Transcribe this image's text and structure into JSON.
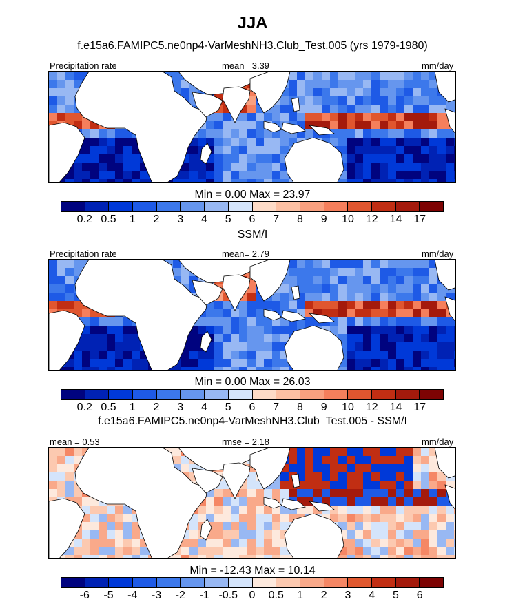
{
  "title": "JJA",
  "panels": [
    {
      "subtitle": "f.e15a6.FAMIPC5.ne0np4-VarMeshNH3.Club_Test.005 (yrs 1979-1980)",
      "left_label": "Precipitation rate",
      "center_label": "mean=   3.39",
      "right_label": "mm/day",
      "minmax": "Min =   0.00 Max =  23.97",
      "field": "model",
      "palette": "precip",
      "levels": [
        "0.2",
        "0.5",
        "1",
        "2",
        "3",
        "4",
        "5",
        "6",
        "7",
        "8",
        "9",
        "10",
        "12",
        "14",
        "17"
      ]
    },
    {
      "subtitle": "SSM/I",
      "left_label": "Precipitation rate",
      "center_label": "mean=   2.79",
      "right_label": "mm/day",
      "minmax": "Min =   0.00 Max =  26.03",
      "field": "obs",
      "palette": "precip",
      "levels": [
        "0.2",
        "0.5",
        "1",
        "2",
        "3",
        "4",
        "5",
        "6",
        "7",
        "8",
        "9",
        "10",
        "12",
        "14",
        "17"
      ]
    },
    {
      "subtitle": "f.e15a6.FAMIPC5.ne0np4-VarMeshNH3.Club_Test.005 - SSM/I",
      "left_label": "mean =   0.53",
      "center_label": "rmse =   2.18",
      "right_label": "mm/day",
      "minmax": "Min = -12.43 Max =  10.14",
      "field": "diff",
      "palette": "diff",
      "levels": [
        "-6",
        "-5",
        "-4",
        "-3",
        "-2",
        "-1",
        "-0.5",
        "0",
        "0.5",
        "1",
        "2",
        "3",
        "4",
        "5",
        "6"
      ]
    }
  ],
  "colors": {
    "precip": [
      "#00037f",
      "#0022b4",
      "#0039d8",
      "#1e5ae6",
      "#3c78eb",
      "#6696ee",
      "#98b8f3",
      "#d4e4fb",
      "#fddbc7",
      "#fcc0a3",
      "#f9a07f",
      "#f57f5c",
      "#e0562f",
      "#c12e13",
      "#a41a0c",
      "#7d0303"
    ],
    "diff": [
      "#00037f",
      "#0022b4",
      "#0039d8",
      "#1e5ae6",
      "#3c78eb",
      "#6696ee",
      "#98b8f3",
      "#d4e4fb",
      "#fde9dd",
      "#fcc9b0",
      "#f9a98a",
      "#f58765",
      "#e0582f",
      "#c12e13",
      "#a41a0c",
      "#7d0303"
    ],
    "land": "#ffffff"
  }
}
